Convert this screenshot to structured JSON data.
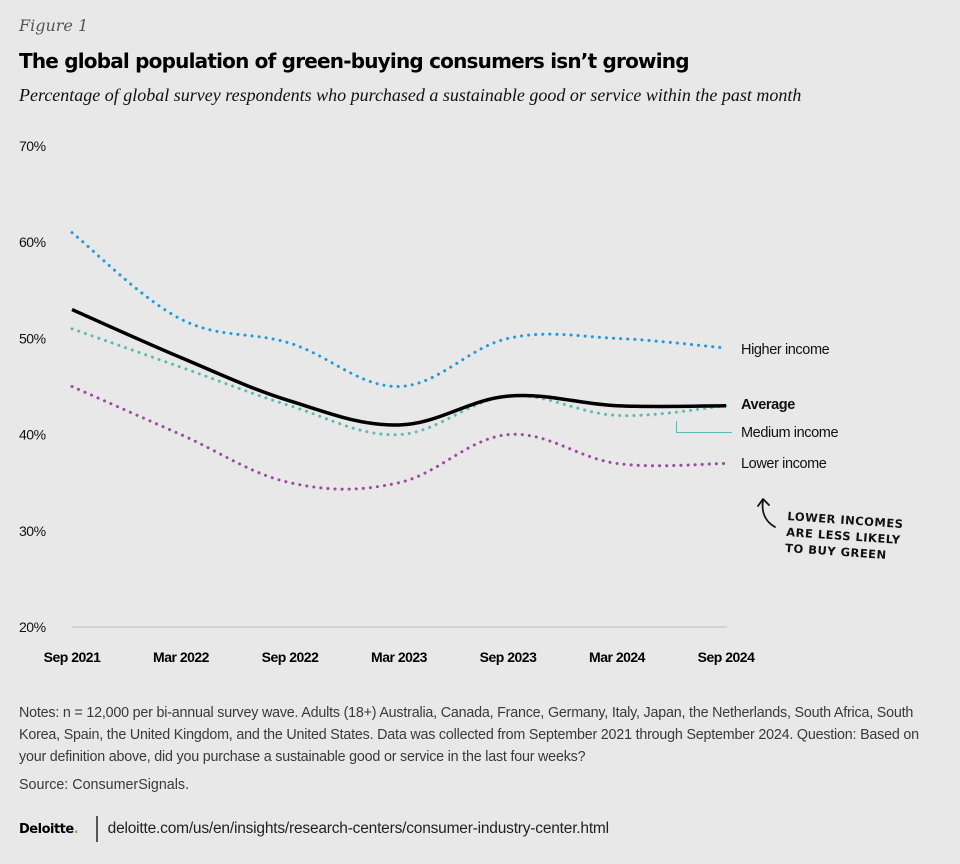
{
  "figure_label": "Figure 1",
  "title": "The global population of green-buying consumers isn’t growing",
  "subtitle": "Percentage of global survey respondents who purchased a sustainable good or service within the past month",
  "chart_data": {
    "type": "line",
    "title": "The global population of green-buying consumers isn’t growing",
    "subtitle": "Percentage of global survey respondents who purchased a sustainable good or service within the past month",
    "xlabel": "",
    "ylabel": "",
    "x": [
      "Sep 2021",
      "Mar 2022",
      "Sep 2022",
      "Mar 2023",
      "Sep 2023",
      "Mar 2024",
      "Sep 2024"
    ],
    "yticks": [
      "20%",
      "30%",
      "40%",
      "50%",
      "60%",
      "70%"
    ],
    "ylim": [
      20,
      70
    ],
    "grid": false,
    "legend": "right (inline labels)",
    "series": [
      {
        "name": "Higher income",
        "color": "#1e9be0",
        "style": "dotted",
        "values": [
          61,
          52,
          49.5,
          45,
          50,
          50,
          49
        ]
      },
      {
        "name": "Average",
        "color": "#000000",
        "style": "solid",
        "values": [
          53,
          48,
          43.5,
          41,
          44,
          43,
          43
        ]
      },
      {
        "name": "Medium income",
        "color": "#5bbab4",
        "style": "dotted",
        "values": [
          51,
          47,
          43,
          40,
          44,
          42,
          43
        ]
      },
      {
        "name": "Lower income",
        "color": "#9b4a9f",
        "style": "dotted",
        "values": [
          45,
          40,
          35,
          35,
          40,
          37,
          37
        ]
      }
    ],
    "annotation": [
      "LOWER INCOMES",
      "ARE LESS LIKELY",
      "TO BUY GREEN"
    ]
  },
  "notes": "Notes: n = 12,000 per bi-annual survey wave. Adults (18+) Australia, Canada, France, Germany, Italy, Japan, the Netherlands, South Africa, South Korea, Spain, the United Kingdom, and the United States. Data was collected from September 2021 through September 2024. Question: Based on your definition above, did you purchase a sustainable good or service in the last four weeks?",
  "source": "Source: ConsumerSignals.",
  "footer": {
    "logo": "Deloitte",
    "logo_dot": ".",
    "url": "deloitte.com/us/en/insights/research-centers/consumer-industry-center.html"
  }
}
